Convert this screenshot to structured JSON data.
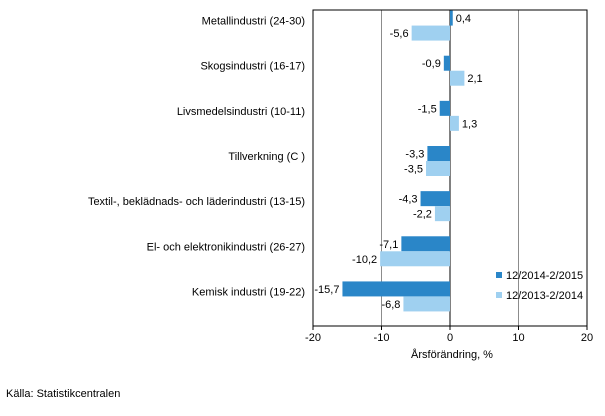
{
  "colors": {
    "series1": "#2a86c8",
    "series2": "#9fd0f0",
    "grid": "#8c8c8c",
    "axis": "#000000"
  },
  "source": "Källa: Statistikcentralen",
  "chart_data": {
    "type": "bar",
    "orientation": "horizontal",
    "categories": [
      "Metallindustri (24-30)",
      "Skogsindustri (16-17)",
      "Livsmedelsindustri (10-11)",
      "Tillverkning (C )",
      "Textil-, beklädnads- och läderindustri (13-15)",
      "El- och elektronikindustri (26-27)",
      "Kemisk industri (19-22)"
    ],
    "series": [
      {
        "name": "12/2014-2/2015",
        "values": [
          0.4,
          -0.9,
          -1.5,
          -3.3,
          -4.3,
          -7.1,
          -15.7
        ],
        "labels": [
          "0,4",
          "-0,9",
          "-1,5",
          "-3,3",
          "-4,3",
          "-7,1",
          "-15,7"
        ]
      },
      {
        "name": "12/2013-2/2014",
        "values": [
          -5.6,
          2.1,
          1.3,
          -3.5,
          -2.2,
          -10.2,
          -6.8
        ],
        "labels": [
          "-5,6",
          "2,1",
          "1,3",
          "-3,5",
          "-2,2",
          "-10,2",
          "-6,8"
        ]
      }
    ],
    "xlabel": "Årsförändring, %",
    "xlim": [
      -20,
      20
    ],
    "xticks": [
      -20,
      -10,
      0,
      10,
      20
    ],
    "xtick_labels": [
      "-20",
      "-10",
      "0",
      "10",
      "20"
    ],
    "grid": true,
    "legend_position": "bottom-right"
  }
}
